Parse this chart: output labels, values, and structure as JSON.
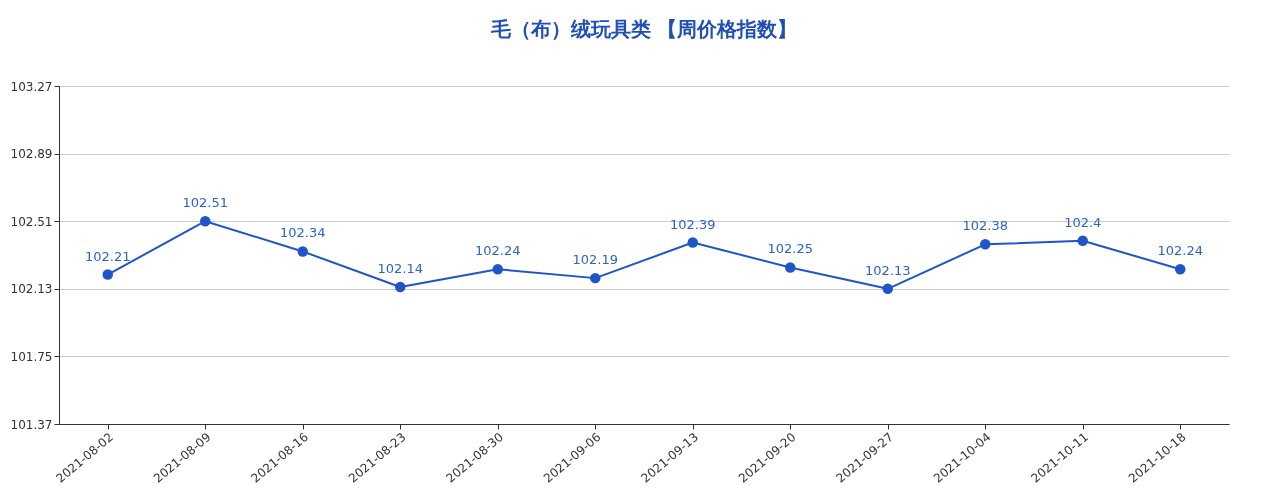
{
  "chart_data": {
    "type": "line",
    "title": "毛（布）绒玩具类 【周价格指数】",
    "categories": [
      "2021-08-02",
      "2021-08-09",
      "2021-08-16",
      "2021-08-23",
      "2021-08-30",
      "2021-09-06",
      "2021-09-13",
      "2021-09-20",
      "2021-09-27",
      "2021-10-04",
      "2021-10-11",
      "2021-10-18"
    ],
    "values": [
      102.21,
      102.51,
      102.34,
      102.14,
      102.24,
      102.19,
      102.39,
      102.25,
      102.13,
      102.38,
      102.4,
      102.24
    ],
    "color": "#1f55c8",
    "ylim": [
      101.37,
      103.27
    ],
    "yticks": [
      101.37,
      101.75,
      102.13,
      102.51,
      102.89,
      103.27
    ],
    "grid": "y",
    "marker": "circle",
    "data_labels": true,
    "line_style": "solid"
  }
}
